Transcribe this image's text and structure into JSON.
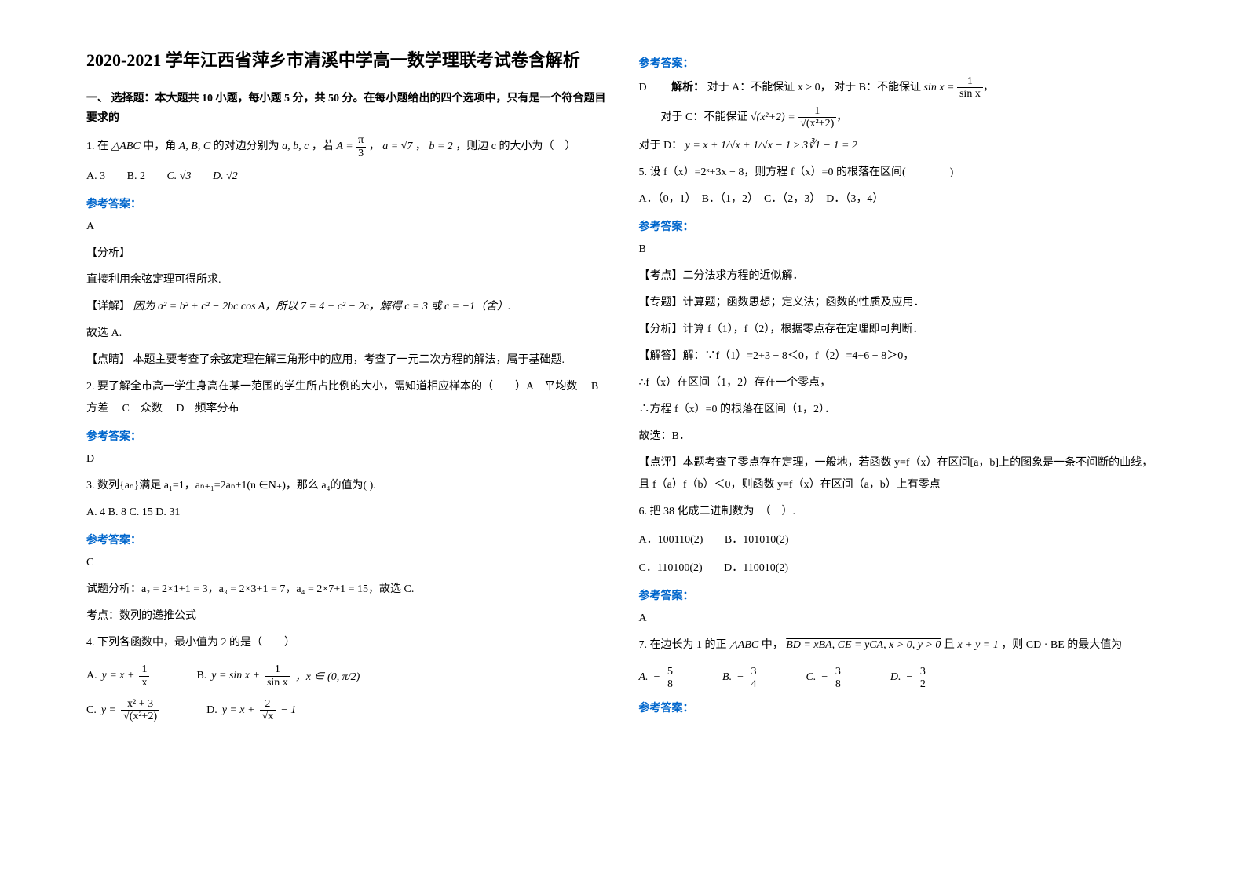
{
  "colors": {
    "text": "#000000",
    "background": "#ffffff",
    "accent": "#0066cc"
  },
  "typography": {
    "body_fontsize": 14,
    "title_fontsize": 22,
    "font_family": "SimSun"
  },
  "title": "2020-2021 学年江西省萍乡市清溪中学高一数学理联考试卷含解析",
  "section1_header": "一、 选择题：本大题共 10 小题，每小题 5 分，共 50 分。在每小题给出的四个选项中，只有是一个符合题目要求的",
  "q1": {
    "stem_prefix": "1. 在",
    "stem_triangle": "△ABC",
    "stem_mid1": " 中，角",
    "stem_angles": "A, B, C",
    "stem_mid2": " 的对边分别为",
    "stem_sides": "a, b, c",
    "stem_mid3": "，若",
    "stem_A_eq": "A = ",
    "stem_A_num": "π",
    "stem_A_den": "3",
    "stem_comma1": "，",
    "stem_a_eq": "a = √7",
    "stem_comma2": "，",
    "stem_b_eq": "b = 2",
    "stem_end": "，则边 c 的大小为（　）",
    "options_a": "A. 3",
    "options_b": "B. 2",
    "options_c": "C. √3",
    "options_d": "D. √2",
    "answer_label": "参考答案：",
    "answer": "A",
    "analysis_tag": "【分析】",
    "analysis": "直接利用余弦定理可得所求.",
    "detail_tag": "【详解】",
    "detail_text": "因为 a² = b² + c² − 2bc cos A，所以 7 = 4 + c² − 2c，解得 c = 3 或 c = −1（舍）.",
    "conclusion": "故选 A.",
    "comment_tag": "【点睛】",
    "comment": "本题主要考查了余弦定理在解三角形中的应用，考查了一元二次方程的解法，属于基础题."
  },
  "q2": {
    "stem": "2. 要了解全市高一学生身高在某一范围的学生所占比例的大小，需知道相应样本的（　　）A　平均数　 B　方差　 C　众数　 D　频率分布",
    "answer_label": "参考答案：",
    "answer": "D"
  },
  "q3": {
    "stem": "3. 数列{aₙ}满足 a₁=1，aₙ₊₁=2aₙ+1(n ∈N₊)，那么 a₄的值为( ).",
    "options": "A. 4     B. 8     C. 15    D. 31",
    "answer_label": "参考答案：",
    "answer": "C",
    "analysis": "试题分析：a₂ = 2×1+1 = 3，a₃ = 2×3+1 = 7，a₄ = 2×7+1 = 15，故选 C.",
    "note": "考点：数列的递推公式"
  },
  "q4": {
    "stem": "4. 下列各函数中，最小值为 2 的是（　　）",
    "optA_label": "A.",
    "optA_num": "1",
    "optA_den": "x",
    "optA_prefix": "y = x + ",
    "optB_label": "B.",
    "optB_prefix": "y = sin x + ",
    "optB_num": "1",
    "optB_den": "sin x",
    "optB_cond": "，x ∈ (0, π/2)",
    "optC_label": "C.",
    "optC_prefix": "y = ",
    "optC_num": "x² + 3",
    "optC_den": "√(x²+2)",
    "optD_label": "D.",
    "optD_prefix": "y = x + ",
    "optD_num": "2",
    "optD_den": "√x",
    "optD_suffix": " − 1",
    "answer_label": "参考答案：",
    "answer": "D",
    "expl_prefix": "解析：",
    "expl_a": "对于 A：不能保证 x > 0，",
    "expl_b": "对于 B：不能保证 ",
    "expl_b_eq_lhs": "sin x = ",
    "expl_b_num": "1",
    "expl_b_den": "sin x",
    "expl_c": "对于 C：不能保证 ",
    "expl_c_lhs": "√(x²+2) = ",
    "expl_c_num": "1",
    "expl_c_den": "√(x²+2)",
    "expl_d": "对于 D：",
    "expl_d_eq": "y = x + 1/√x + 1/√x − 1 ≥ 3∛1 − 1 = 2"
  },
  "q5": {
    "stem": "5. 设 f（x）=2ˣ+3x − 8，则方程 f（x）=0 的根落在区间(　　　　)",
    "options": "A．（0，1）　B．（1，2）　C．（2，3）　D．（3，4）",
    "answer_label": "参考答案：",
    "answer": "B",
    "tag1": "【考点】二分法求方程的近似解．",
    "tag2": "【专题】计算题；函数思想；定义法；函数的性质及应用．",
    "tag3": "【分析】计算 f（1），f（2），根据零点存在定理即可判断．",
    "tag4": "【解答】解：∵f（1）=2+3 − 8＜0，f（2）=4+6 − 8＞0，",
    "line1": "∴f（x）在区间（1，2）存在一个零点，",
    "line2": "∴方程 f（x）=0 的根落在区间（1，2）．",
    "line3": "故选：B．",
    "tag5": "【点评】本题考查了零点存在定理，一般地，若函数 y=f（x）在区间[a，b]上的图象是一条不间断的曲线，且 f（a）f（b）＜0，则函数 y=f（x）在区间（a，b）上有零点"
  },
  "q6": {
    "stem": "6. 把 38 化成二进制数为　（　）.",
    "optA": "A．100110(2)",
    "optB": "B．101010(2)",
    "optC": "C．110100(2)",
    "optD": "D．110010(2)",
    "answer_label": "参考答案：",
    "answer": "A"
  },
  "q7": {
    "stem_prefix": "7. 在边长为 1 的正",
    "stem_triangle": "△ABC",
    "stem_mid": " 中，",
    "stem_BD": "BD = xBA, CE = yCA, x > 0, y > 0",
    "stem_and": " 且 ",
    "stem_sum": "x + y = 1",
    "stem_end": "，则 CD · BE 的最大值为",
    "optA_label": "A.",
    "optA_num": "5",
    "optA_den": "8",
    "optB_label": "B.",
    "optB_num": "3",
    "optB_den": "4",
    "optC_label": "C.",
    "optC_num": "3",
    "optC_den": "8",
    "optD_label": "D.",
    "optD_num": "3",
    "optD_den": "2",
    "answer_label": "参考答案："
  }
}
